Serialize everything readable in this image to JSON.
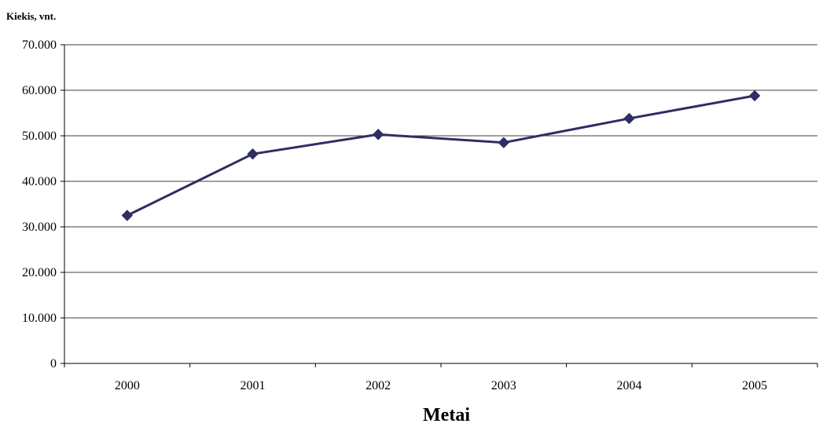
{
  "chart_data": {
    "type": "line",
    "title": "",
    "xlabel": "Metai",
    "ylabel": "Kiekis, vnt.",
    "categories": [
      "2000",
      "2001",
      "2002",
      "2003",
      "2004",
      "2005"
    ],
    "series": [
      {
        "values": [
          32500,
          46000,
          50300,
          48500,
          53800,
          58800
        ],
        "color": "#2e2e64",
        "marker": "diamond"
      }
    ],
    "ylim": [
      0,
      70000
    ],
    "yticks": [
      0,
      10000,
      20000,
      30000,
      40000,
      50000,
      60000,
      70000
    ],
    "ytick_labels": [
      "0",
      "10.000",
      "20.000",
      "30.000",
      "40.000",
      "50.000",
      "60.000",
      "70.000"
    ],
    "grid": true,
    "legend": "none"
  }
}
